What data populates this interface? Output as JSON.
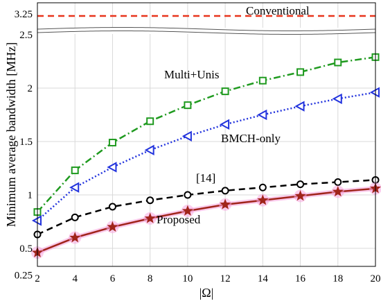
{
  "chart_data": {
    "type": "line",
    "xlabel": "|Ω|",
    "ylabel": "Minimum average bandwidth  [MHz]",
    "x": [
      2,
      4,
      6,
      8,
      10,
      12,
      14,
      16,
      18,
      20
    ],
    "xlim": [
      2,
      20
    ],
    "ylim": [
      0.25,
      3.25
    ],
    "y_axis_break": [
      2.5,
      3.25
    ],
    "xticks": [
      "2",
      "4",
      "6",
      "8",
      "10",
      "12",
      "14",
      "16",
      "18",
      "20"
    ],
    "yticks": [
      "0.25",
      "0.5",
      "1",
      "1.5",
      "2",
      "2.5",
      "3.25"
    ],
    "grid": true,
    "series": [
      {
        "name": "Conventional",
        "color": "#e8341c",
        "line": "dashed",
        "marker": "none",
        "values": [
          3.18,
          3.18,
          3.18,
          3.18,
          3.18,
          3.18,
          3.18,
          3.18,
          3.18,
          3.18
        ]
      },
      {
        "name": "Multi+Unis",
        "color": "#1f9a1f",
        "line": "dashdot",
        "marker": "square",
        "values": [
          0.84,
          1.23,
          1.49,
          1.69,
          1.84,
          1.97,
          2.07,
          2.15,
          2.24,
          2.29
        ]
      },
      {
        "name": "BMCH-only",
        "color": "#2233dd",
        "line": "dotted",
        "marker": "triangle-left",
        "values": [
          0.76,
          1.07,
          1.26,
          1.42,
          1.55,
          1.66,
          1.75,
          1.83,
          1.9,
          1.96
        ]
      },
      {
        "name": "[14]",
        "color": "#000000",
        "line": "dashed",
        "marker": "circle",
        "values": [
          0.63,
          0.79,
          0.89,
          0.95,
          1.0,
          1.04,
          1.07,
          1.1,
          1.12,
          1.14
        ]
      },
      {
        "name": "Proposed",
        "color": "#a0241a",
        "line": "solid",
        "marker": "star",
        "values": [
          0.46,
          0.6,
          0.7,
          0.78,
          0.85,
          0.91,
          0.95,
          0.99,
          1.03,
          1.06
        ]
      }
    ],
    "annotations": [
      "Conventional",
      "Multi+Unis",
      "BMCH-only",
      "[14]",
      "Proposed"
    ]
  }
}
